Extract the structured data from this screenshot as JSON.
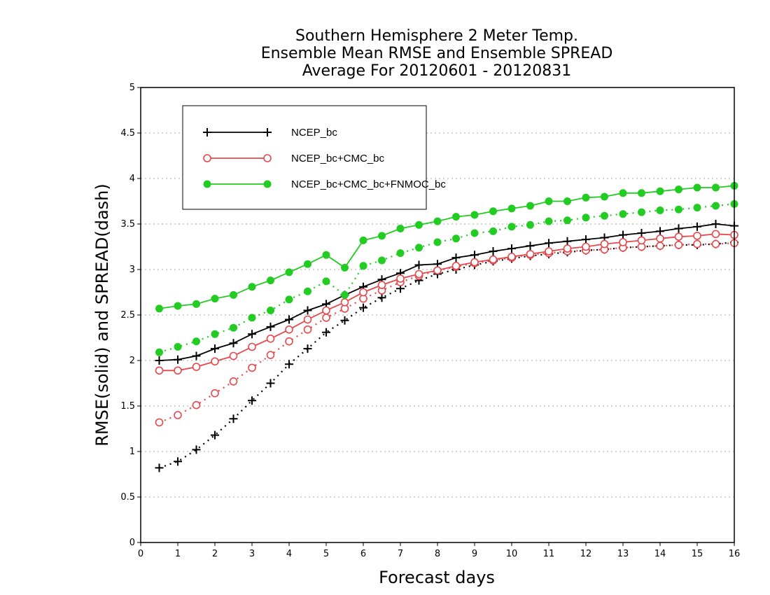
{
  "chart_data": {
    "type": "line",
    "title": [
      "Southern Hemisphere 2 Meter Temp.",
      "Ensemble Mean RMSE and Ensemble SPREAD",
      "Average For 20120601 - 20120831"
    ],
    "xlabel": "Forecast days",
    "ylabel": "RMSE(solid) and SPREAD(dash)",
    "xlim": [
      0,
      16
    ],
    "ylim": [
      0,
      5
    ],
    "x_ticks": [
      "0",
      "1",
      "2",
      "3",
      "4",
      "5",
      "6",
      "7",
      "8",
      "9",
      "10",
      "11",
      "12",
      "13",
      "14",
      "15",
      "16"
    ],
    "y_ticks": [
      "0",
      "0.5",
      "1",
      "1.5",
      "2",
      "2.5",
      "3",
      "3.5",
      "4",
      "4.5",
      "5"
    ],
    "grid": "horizontal dotted",
    "legend_position": "top-left",
    "x": [
      0.5,
      1,
      1.5,
      2,
      2.5,
      3,
      3.5,
      4,
      4.5,
      5,
      5.5,
      6,
      6.5,
      7,
      7.5,
      8,
      8.5,
      9,
      9.5,
      10,
      10.5,
      11,
      11.5,
      12,
      12.5,
      13,
      13.5,
      14,
      14.5,
      15,
      15.5,
      16
    ],
    "series": [
      {
        "name": "NCEP_bc",
        "color": "#000000",
        "marker": "plus",
        "rmse": [
          2.0,
          2.01,
          2.05,
          2.13,
          2.19,
          2.29,
          2.37,
          2.45,
          2.55,
          2.62,
          2.72,
          2.81,
          2.89,
          2.96,
          3.05,
          3.06,
          3.13,
          3.16,
          3.2,
          3.23,
          3.26,
          3.29,
          3.31,
          3.33,
          3.35,
          3.38,
          3.4,
          3.42,
          3.45,
          3.47,
          3.5,
          3.48
        ],
        "spread": [
          0.82,
          0.89,
          1.02,
          1.18,
          1.36,
          1.56,
          1.75,
          1.96,
          2.13,
          2.31,
          2.44,
          2.58,
          2.69,
          2.79,
          2.88,
          2.95,
          3.0,
          3.05,
          3.09,
          3.12,
          3.15,
          3.17,
          3.19,
          3.21,
          3.22,
          3.24,
          3.25,
          3.26,
          3.27,
          3.27,
          3.28,
          3.3
        ]
      },
      {
        "name": "NCEP_bc+CMC_bc",
        "color": "#e8474c",
        "marker": "open-circle",
        "rmse": [
          1.89,
          1.89,
          1.93,
          1.99,
          2.05,
          2.15,
          2.24,
          2.34,
          2.45,
          2.55,
          2.64,
          2.75,
          2.83,
          2.9,
          2.95,
          2.99,
          3.04,
          3.08,
          3.11,
          3.14,
          3.17,
          3.2,
          3.23,
          3.25,
          3.28,
          3.3,
          3.32,
          3.34,
          3.36,
          3.37,
          3.39,
          3.38
        ],
        "spread": [
          1.32,
          1.4,
          1.51,
          1.64,
          1.77,
          1.92,
          2.06,
          2.21,
          2.34,
          2.47,
          2.57,
          2.68,
          2.77,
          2.86,
          2.93,
          2.99,
          3.03,
          3.07,
          3.1,
          3.13,
          3.16,
          3.18,
          3.2,
          3.21,
          3.22,
          3.24,
          3.25,
          3.26,
          3.27,
          3.28,
          3.28,
          3.29
        ]
      },
      {
        "name": "NCEP_bc+CMC_bc+FNMOC_bc",
        "color": "#22cc22",
        "marker": "filled-circle",
        "rmse": [
          2.57,
          2.6,
          2.62,
          2.68,
          2.72,
          2.81,
          2.88,
          2.97,
          3.06,
          3.16,
          3.02,
          3.32,
          3.37,
          3.45,
          3.49,
          3.53,
          3.58,
          3.6,
          3.64,
          3.67,
          3.7,
          3.75,
          3.75,
          3.79,
          3.8,
          3.84,
          3.84,
          3.86,
          3.88,
          3.9,
          3.9,
          3.92
        ],
        "spread": [
          2.09,
          2.15,
          2.21,
          2.29,
          2.36,
          2.47,
          2.55,
          2.67,
          2.76,
          2.87,
          2.72,
          3.04,
          3.1,
          3.18,
          3.24,
          3.3,
          3.34,
          3.4,
          3.42,
          3.47,
          3.49,
          3.53,
          3.54,
          3.57,
          3.59,
          3.61,
          3.63,
          3.65,
          3.66,
          3.68,
          3.7,
          3.72
        ]
      }
    ]
  }
}
